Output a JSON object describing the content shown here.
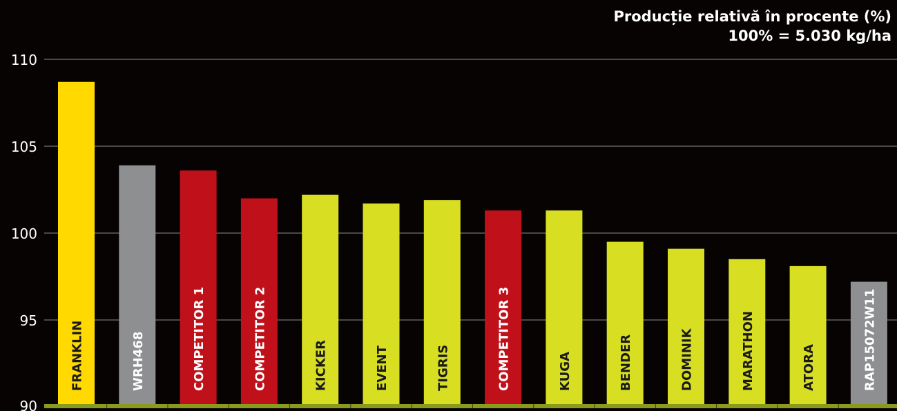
{
  "chart_data": {
    "type": "bar",
    "title": "Producție relativă în procente (%)",
    "subtitle": "100% = 5.030 kg/ha",
    "xlabel": "",
    "ylabel": "",
    "ylim": [
      90,
      110
    ],
    "yticks": [
      90,
      95,
      100,
      105,
      110
    ],
    "grid": true,
    "categories": [
      "FRANKLIN",
      "WRH468",
      "COMPETITOR 1",
      "COMPETITOR 2",
      "KICKER",
      "EVENT",
      "TIGRIS",
      "COMPETITOR 3",
      "KUGA",
      "BENDER",
      "DOMINIK",
      "MARATHON",
      "ATORA",
      "RAP15072W11"
    ],
    "values": [
      108.7,
      103.9,
      103.6,
      102.0,
      102.2,
      101.7,
      101.9,
      101.3,
      101.3,
      99.5,
      99.1,
      98.5,
      98.1,
      97.2
    ],
    "bar_colors": [
      "#ffd900",
      "#8e8f91",
      "#c0111b",
      "#c0111b",
      "#d8df22",
      "#d8df22",
      "#d8df22",
      "#c0111b",
      "#d8df22",
      "#d8df22",
      "#d8df22",
      "#d8df22",
      "#d8df22",
      "#8e8f91"
    ],
    "label_colors": [
      "#1a1a1a",
      "#ffffff",
      "#ffffff",
      "#ffffff",
      "#1a1a1a",
      "#1a1a1a",
      "#1a1a1a",
      "#ffffff",
      "#1a1a1a",
      "#1a1a1a",
      "#1a1a1a",
      "#1a1a1a",
      "#1a1a1a",
      "#ffffff"
    ],
    "baseline_color": "#8a9a1c",
    "grid_color": "#8c8c8c"
  }
}
